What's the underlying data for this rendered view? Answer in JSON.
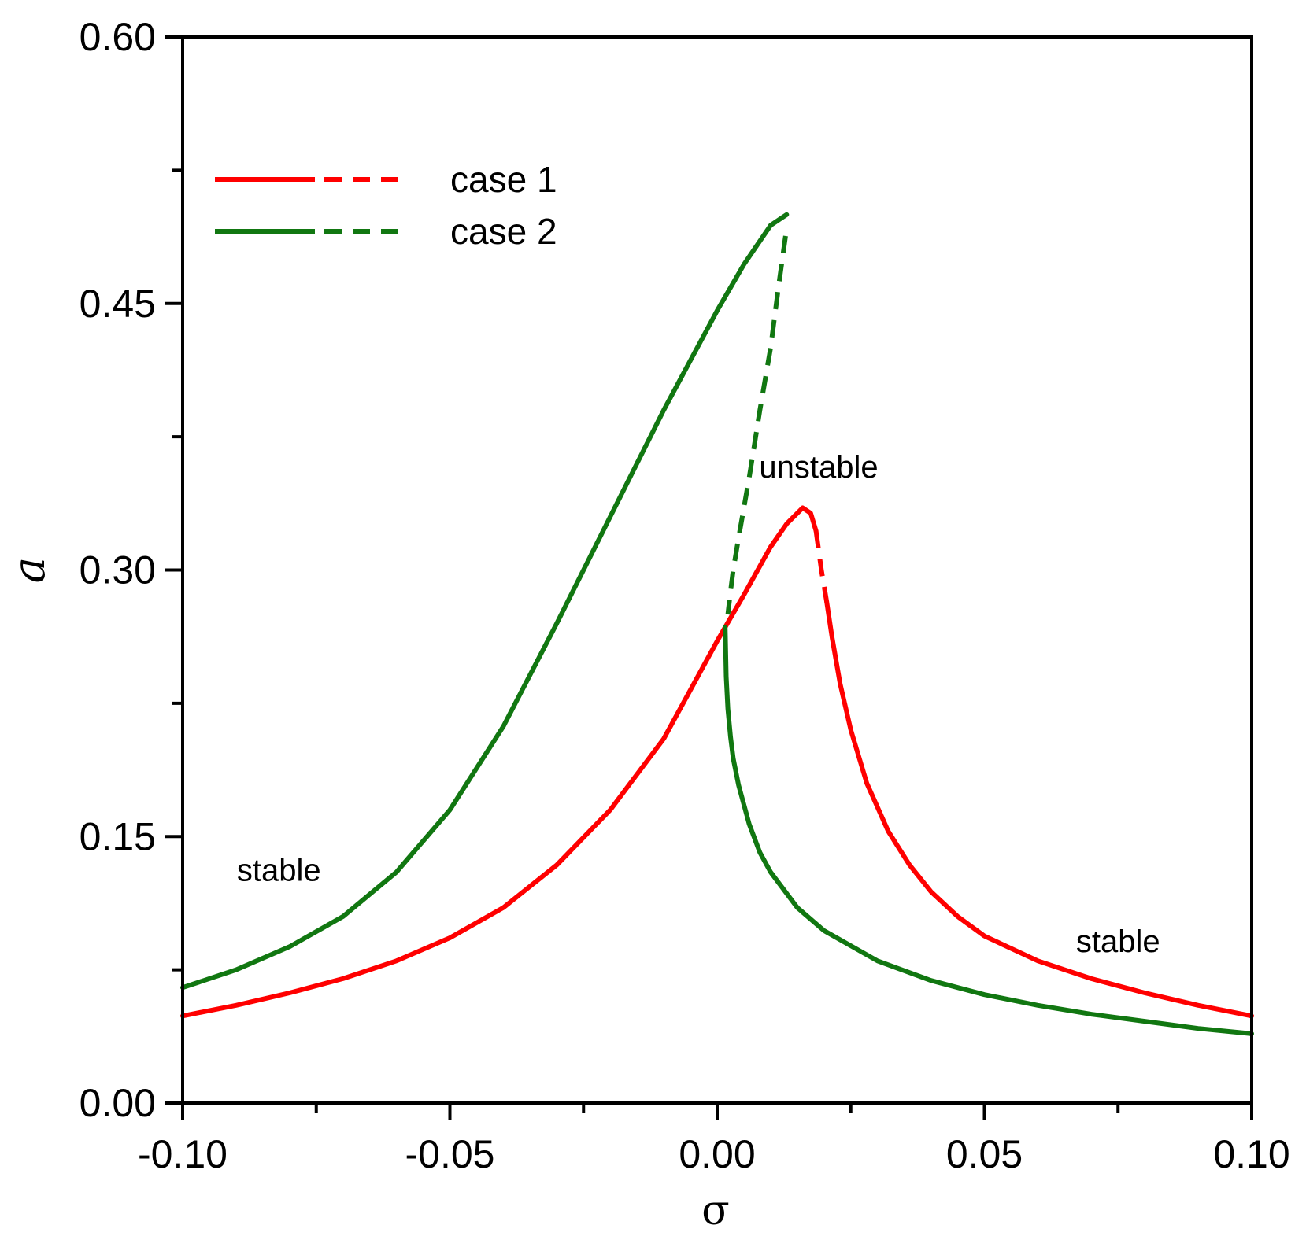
{
  "chart_data": {
    "type": "line",
    "title": "",
    "xlabel": "σ",
    "ylabel": "a",
    "xlim": [
      -0.1,
      0.1
    ],
    "ylim": [
      0.0,
      0.6
    ],
    "xticks": [
      -0.1,
      -0.05,
      0.0,
      0.05,
      0.1
    ],
    "xtick_labels": [
      "-0.10",
      "-0.05",
      "0.00",
      "0.05",
      "0.10"
    ],
    "yticks": [
      0.0,
      0.15,
      0.3,
      0.45,
      0.6
    ],
    "ytick_labels": [
      "0.00",
      "0.15",
      "0.30",
      "0.45",
      "0.60"
    ],
    "x_minor_ticks": [
      -0.075,
      -0.025,
      0.025,
      0.075
    ],
    "y_minor_ticks": [
      0.075,
      0.225,
      0.375,
      0.525
    ],
    "grid": false,
    "legend_position": "top-left",
    "colors": {
      "case1": "#ff0000",
      "case2": "#117711",
      "axis": "#000000"
    },
    "series": [
      {
        "name": "case 1",
        "color": "#ff0000",
        "stable_upper": {
          "x": [
            -0.1,
            -0.09,
            -0.08,
            -0.07,
            -0.06,
            -0.05,
            -0.04,
            -0.03,
            -0.02,
            -0.01,
            0.0,
            0.005,
            0.01,
            0.013,
            0.016,
            0.0175,
            0.0185
          ],
          "y": [
            0.049,
            0.055,
            0.062,
            0.07,
            0.08,
            0.093,
            0.11,
            0.134,
            0.165,
            0.205,
            0.26,
            0.286,
            0.313,
            0.326,
            0.335,
            0.332,
            0.322
          ]
        },
        "unstable": {
          "x": [
            0.0185,
            0.0195,
            0.0205
          ],
          "y": [
            0.322,
            0.3,
            0.282
          ]
        },
        "stable_lower": {
          "x": [
            0.0205,
            0.0215,
            0.023,
            0.025,
            0.028,
            0.032,
            0.036,
            0.04,
            0.045,
            0.05,
            0.06,
            0.07,
            0.08,
            0.09,
            0.1
          ],
          "y": [
            0.282,
            0.262,
            0.236,
            0.21,
            0.18,
            0.153,
            0.134,
            0.119,
            0.105,
            0.094,
            0.08,
            0.07,
            0.062,
            0.055,
            0.049
          ]
        }
      },
      {
        "name": "case 2",
        "color": "#117711",
        "stable_upper": {
          "x": [
            -0.1,
            -0.09,
            -0.08,
            -0.07,
            -0.06,
            -0.05,
            -0.04,
            -0.03,
            -0.02,
            -0.01,
            0.0,
            0.005,
            0.01,
            0.012,
            0.013
          ],
          "y": [
            0.065,
            0.075,
            0.088,
            0.105,
            0.13,
            0.165,
            0.212,
            0.27,
            0.33,
            0.39,
            0.446,
            0.472,
            0.494,
            0.498,
            0.5
          ]
        },
        "unstable": {
          "x": [
            0.0128,
            0.0115,
            0.01,
            0.008,
            0.006,
            0.004,
            0.003,
            0.0025,
            0.002
          ],
          "y": [
            0.488,
            0.46,
            0.425,
            0.39,
            0.352,
            0.318,
            0.3,
            0.288,
            0.275
          ]
        },
        "stable_lower": {
          "x": [
            0.0015,
            0.0017,
            0.002,
            0.0025,
            0.003,
            0.004,
            0.006,
            0.008,
            0.01,
            0.015,
            0.02,
            0.03,
            0.04,
            0.05,
            0.06,
            0.07,
            0.08,
            0.09,
            0.1
          ],
          "y": [
            0.268,
            0.24,
            0.222,
            0.206,
            0.194,
            0.179,
            0.157,
            0.141,
            0.13,
            0.11,
            0.097,
            0.08,
            0.069,
            0.061,
            0.055,
            0.05,
            0.046,
            0.042,
            0.039
          ]
        }
      }
    ],
    "annotations": [
      {
        "text": "stable",
        "x": -0.082,
        "y": 0.125
      },
      {
        "text": "unstable",
        "x": 0.019,
        "y": 0.352
      },
      {
        "text": "stable",
        "x": 0.075,
        "y": 0.085
      }
    ],
    "legend": [
      {
        "label": "case 1",
        "color": "#ff0000"
      },
      {
        "label": "case 2",
        "color": "#117711"
      }
    ]
  }
}
